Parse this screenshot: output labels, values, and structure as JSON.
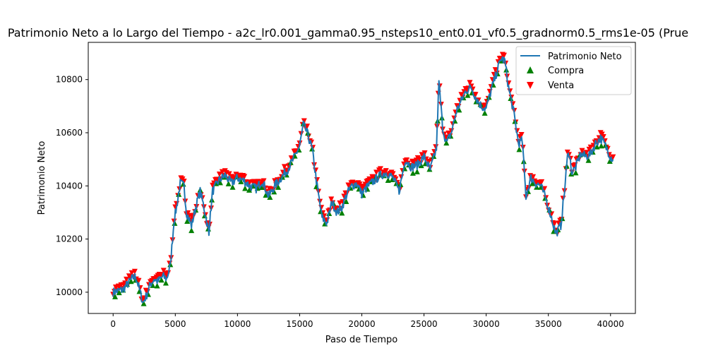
{
  "chart_data": {
    "type": "line",
    "title": "Patrimonio Neto a lo Largo del Tiempo - a2c_lr0.001_gamma0.95_nsteps10_ent0.01_vf0.5_gradnorm0.5_rms1e-05 (Prue",
    "xlabel": "Paso de Tiempo",
    "ylabel": "Patrimonio Neto",
    "xlim": [
      -2000,
      42000
    ],
    "ylim": [
      9920,
      10940
    ],
    "xticks": [
      0,
      5000,
      10000,
      15000,
      20000,
      25000,
      30000,
      35000,
      40000
    ],
    "yticks": [
      10000,
      10200,
      10400,
      10600,
      10800
    ],
    "grid": false,
    "legend_position": "top-right",
    "series": [
      {
        "name": "Patrimonio Neto",
        "kind": "line",
        "color": "#1f77b4",
        "x": [
          0,
          800,
          1500,
          1800,
          2000,
          2400,
          2700,
          3000,
          3300,
          3600,
          4000,
          4300,
          4600,
          4900,
          5100,
          5400,
          5700,
          5900,
          6300,
          6700,
          7000,
          7300,
          7600,
          7700,
          8000,
          8500,
          9000,
          9500,
          10000,
          10500,
          11000,
          11500,
          12000,
          12500,
          13000,
          13500,
          14000,
          14500,
          15000,
          15300,
          15600,
          16000,
          16400,
          16800,
          17200,
          17600,
          18000,
          18400,
          18800,
          19200,
          19600,
          20000,
          20500,
          21000,
          21500,
          22000,
          22500,
          23000,
          23500,
          24000,
          24500,
          25000,
          25500,
          26000,
          26200,
          26500,
          26800,
          27200,
          27600,
          28000,
          28400,
          28800,
          29200,
          29600,
          30000,
          30400,
          30800,
          31200,
          31500,
          31800,
          32200,
          32600,
          32900,
          33200,
          33600,
          34000,
          34400,
          34800,
          35200,
          35600,
          36000,
          36300,
          36600,
          36900,
          37200,
          37600,
          38000,
          38400,
          38800,
          39200,
          39600,
          40000,
          40200
        ],
        "y": [
          10000,
          10010,
          10050,
          10060,
          10030,
          9960,
          9990,
          10030,
          10050,
          10040,
          10060,
          10050,
          10100,
          10270,
          10320,
          10410,
          10400,
          10300,
          10250,
          10330,
          10380,
          10320,
          10250,
          10230,
          10380,
          10420,
          10440,
          10410,
          10430,
          10420,
          10400,
          10390,
          10420,
          10360,
          10400,
          10430,
          10460,
          10500,
          10550,
          10630,
          10600,
          10540,
          10400,
          10280,
          10260,
          10340,
          10300,
          10320,
          10370,
          10400,
          10410,
          10370,
          10400,
          10420,
          10440,
          10450,
          10430,
          10380,
          10500,
          10470,
          10480,
          10510,
          10460,
          10540,
          10790,
          10620,
          10560,
          10600,
          10680,
          10720,
          10760,
          10770,
          10730,
          10700,
          10690,
          10760,
          10820,
          10880,
          10870,
          10770,
          10680,
          10560,
          10570,
          10360,
          10430,
          10410,
          10400,
          10350,
          10290,
          10220,
          10250,
          10380,
          10540,
          10450,
          10470,
          10520,
          10510,
          10520,
          10560,
          10580,
          10550,
          10510,
          10500
        ]
      },
      {
        "name": "Compra",
        "kind": "marker",
        "marker": "triangle-up",
        "color": "#008000"
      },
      {
        "name": "Venta",
        "kind": "marker",
        "marker": "triangle-down",
        "color": "#ff0000"
      }
    ]
  }
}
